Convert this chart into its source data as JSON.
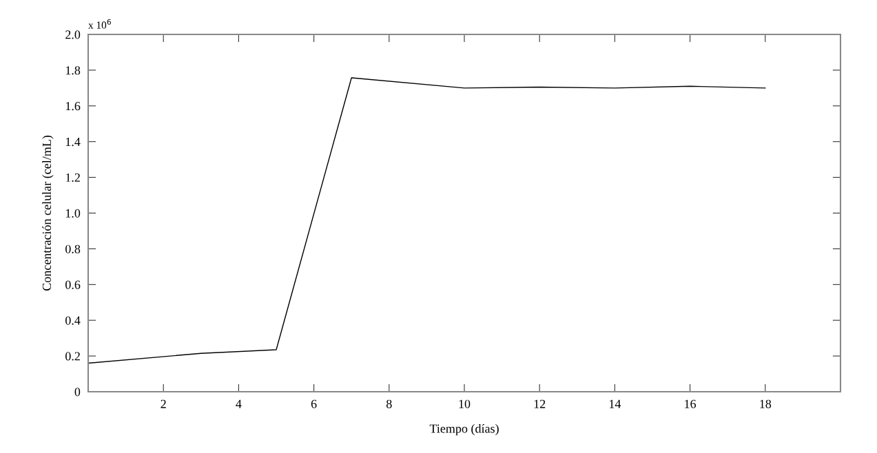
{
  "chart_data": {
    "type": "line",
    "xlabel": "Tiempo (días)",
    "ylabel": "Concentración celular (cel/mL)",
    "annotations": [
      "x 10$^{6}$"
    ],
    "x": [
      0,
      3,
      5,
      7,
      10,
      12,
      14,
      16,
      18
    ],
    "series": [
      {
        "color": "#000000",
        "values": [
          0.16,
          0.215,
          0.235,
          1.757,
          1.7,
          1.705,
          1.7,
          1.71,
          1.7
        ]
      }
    ],
    "xlim": [
      0,
      20
    ],
    "xticks": [
      2,
      4,
      6,
      8,
      10,
      12,
      14,
      16,
      18
    ],
    "ylim": [
      0,
      2.0
    ],
    "yticks": [
      0,
      {
        "value": 0.2,
        "label": "0.2"
      },
      {
        "value": 0.4,
        "label": "0.4"
      },
      {
        "value": 0.6,
        "label": "0.6"
      },
      {
        "value": 0.8,
        "label": "0.8"
      },
      {
        "value": 1.0,
        "label": "1.0"
      },
      {
        "value": 1.2,
        "label": "1.2"
      },
      {
        "value": 1.4,
        "label": "1.4"
      },
      {
        "value": 1.6,
        "label": "1.6"
      },
      {
        "value": 1.8,
        "label": "1.8"
      },
      {
        "value": 2.0,
        "label": "2.0"
      }
    ],
    "grid": false,
    "marker": "none",
    "line_style": "solid"
  }
}
